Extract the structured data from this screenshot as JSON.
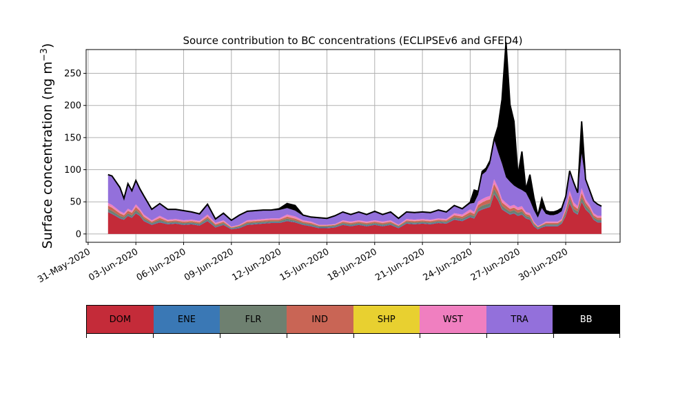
{
  "chart_data": {
    "type": "area",
    "stacked": true,
    "title": "Source contribution to BC concentrations (ECLIPSEv6 and GFED4)",
    "ylabel": "Surface concentration (ng m",
    "ylabel_unit_sup": "−3",
    "ylabel_close": ")",
    "xlabel": "",
    "ylim": [
      -13,
      287
    ],
    "yticks": [
      0,
      50,
      100,
      150,
      200,
      250
    ],
    "xlim": [
      "2020-05-30T21:00",
      "2020-07-03T10:00"
    ],
    "xtick_labels": [
      "31-May-2020",
      "03-Jun-2020",
      "06-Jun-2020",
      "09-Jun-2020",
      "12-Jun-2020",
      "15-Jun-2020",
      "18-Jun-2020",
      "21-Jun-2020",
      "24-Jun-2020",
      "27-Jun-2020",
      "30-Jun-2020"
    ],
    "xtick_dates": [
      "2020-05-31",
      "2020-06-03",
      "2020-06-06",
      "2020-06-09",
      "2020-06-12",
      "2020-06-15",
      "2020-06-18",
      "2020-06-21",
      "2020-06-24",
      "2020-06-27",
      "2020-06-30"
    ],
    "grid": true,
    "x": [
      "2020-06-01T06:00",
      "2020-06-01T12:00",
      "2020-06-02T00:00",
      "2020-06-02T06:00",
      "2020-06-02T12:00",
      "2020-06-02T18:00",
      "2020-06-03T00:00",
      "2020-06-03T06:00",
      "2020-06-03T12:00",
      "2020-06-04T00:00",
      "2020-06-04T12:00",
      "2020-06-05T00:00",
      "2020-06-05T12:00",
      "2020-06-06T00:00",
      "2020-06-06T12:00",
      "2020-06-07T00:00",
      "2020-06-07T12:00",
      "2020-06-08T00:00",
      "2020-06-08T12:00",
      "2020-06-09T00:00",
      "2020-06-09T12:00",
      "2020-06-10T00:00",
      "2020-06-10T12:00",
      "2020-06-11T00:00",
      "2020-06-11T12:00",
      "2020-06-12T00:00",
      "2020-06-12T12:00",
      "2020-06-13T00:00",
      "2020-06-13T12:00",
      "2020-06-14T00:00",
      "2020-06-14T12:00",
      "2020-06-15T00:00",
      "2020-06-15T12:00",
      "2020-06-16T00:00",
      "2020-06-16T12:00",
      "2020-06-17T00:00",
      "2020-06-17T12:00",
      "2020-06-18T00:00",
      "2020-06-18T12:00",
      "2020-06-19T00:00",
      "2020-06-19T12:00",
      "2020-06-20T00:00",
      "2020-06-20T12:00",
      "2020-06-21T00:00",
      "2020-06-21T12:00",
      "2020-06-22T00:00",
      "2020-06-22T12:00",
      "2020-06-23T00:00",
      "2020-06-23T12:00",
      "2020-06-24T00:00",
      "2020-06-24T06:00",
      "2020-06-24T12:00",
      "2020-06-24T18:00",
      "2020-06-25T00:00",
      "2020-06-25T06:00",
      "2020-06-25T12:00",
      "2020-06-25T18:00",
      "2020-06-26T00:00",
      "2020-06-26T06:00",
      "2020-06-26T12:00",
      "2020-06-26T18:00",
      "2020-06-27T00:00",
      "2020-06-27T06:00",
      "2020-06-27T12:00",
      "2020-06-27T18:00",
      "2020-06-28T00:00",
      "2020-06-28T06:00",
      "2020-06-28T12:00",
      "2020-06-28T18:00",
      "2020-06-29T00:00",
      "2020-06-29T06:00",
      "2020-06-29T12:00",
      "2020-06-29T18:00",
      "2020-06-30T00:00",
      "2020-06-30T06:00",
      "2020-06-30T12:00",
      "2020-06-30T18:00",
      "2020-07-01T00:00",
      "2020-07-01T06:00",
      "2020-07-01T12:00",
      "2020-07-01T18:00",
      "2020-07-02T00:00",
      "2020-07-02T06:00"
    ],
    "series": [
      {
        "name": "DOM",
        "color": "#c42b39",
        "values": [
          34,
          31,
          24,
          22,
          28,
          25,
          32,
          28,
          20,
          14,
          18,
          15,
          16,
          14,
          15,
          13,
          20,
          10,
          14,
          7,
          9,
          14,
          15,
          16,
          17,
          17,
          20,
          18,
          14,
          12,
          9,
          9,
          10,
          14,
          12,
          14,
          12,
          14,
          12,
          14,
          9,
          16,
          15,
          16,
          15,
          17,
          16,
          22,
          20,
          26,
          24,
          35,
          38,
          40,
          42,
          62,
          52,
          38,
          34,
          30,
          32,
          28,
          30,
          24,
          22,
          12,
          7,
          10,
          12,
          12,
          12,
          12,
          16,
          28,
          48,
          34,
          30,
          50,
          38,
          32,
          22,
          18,
          18
        ]
      },
      {
        "name": "ENE",
        "color": "#3a78b5",
        "values": [
          1,
          1,
          1,
          1,
          1,
          1,
          1,
          1,
          1,
          1,
          1,
          1,
          1,
          1,
          1,
          1,
          1,
          1,
          1,
          1,
          1,
          1,
          1,
          1,
          1,
          1,
          1,
          1,
          1,
          1,
          1,
          1,
          1,
          1,
          1,
          1,
          1,
          1,
          1,
          1,
          1,
          1,
          1,
          1,
          1,
          1,
          1,
          1,
          1,
          1,
          1,
          1,
          1,
          1,
          1,
          1,
          1,
          1,
          1,
          1,
          1,
          1,
          1,
          1,
          1,
          1,
          1,
          1,
          1,
          1,
          1,
          1,
          1,
          1,
          1,
          1,
          1,
          1,
          1,
          1,
          1,
          1,
          1
        ]
      },
      {
        "name": "FLR",
        "color": "#6e8070",
        "values": [
          4,
          4,
          3,
          3,
          3,
          3,
          4,
          3,
          3,
          2,
          3,
          2,
          2,
          2,
          2,
          2,
          3,
          2,
          2,
          1,
          2,
          2,
          2,
          2,
          2,
          2,
          3,
          2,
          2,
          2,
          2,
          2,
          2,
          2,
          2,
          2,
          2,
          2,
          2,
          2,
          2,
          2,
          2,
          2,
          2,
          2,
          2,
          3,
          3,
          3,
          3,
          4,
          5,
          5,
          5,
          7,
          6,
          5,
          4,
          4,
          4,
          4,
          4,
          3,
          3,
          2,
          2,
          2,
          2,
          2,
          2,
          2,
          2,
          4,
          6,
          4,
          4,
          6,
          5,
          4,
          3,
          3,
          3
        ]
      },
      {
        "name": "IND",
        "color": "#c96555",
        "values": [
          5,
          5,
          4,
          3,
          4,
          4,
          5,
          4,
          3,
          2,
          3,
          2,
          2,
          2,
          2,
          2,
          3,
          2,
          2,
          1,
          1,
          2,
          2,
          2,
          2,
          2,
          3,
          3,
          2,
          2,
          1,
          1,
          1,
          2,
          2,
          2,
          2,
          2,
          2,
          2,
          1,
          2,
          2,
          2,
          2,
          2,
          2,
          3,
          3,
          4,
          3,
          5,
          5,
          6,
          6,
          8,
          7,
          5,
          5,
          4,
          4,
          4,
          4,
          3,
          3,
          2,
          1,
          1,
          2,
          2,
          2,
          2,
          2,
          4,
          6,
          5,
          4,
          7,
          5,
          4,
          3,
          3,
          3
        ]
      },
      {
        "name": "SHP",
        "color": "#e8d030",
        "values": [
          0.3,
          0.3,
          0.3,
          0.3,
          0.3,
          0.3,
          0.3,
          0.3,
          0.3,
          0.3,
          0.3,
          0.3,
          0.3,
          0.3,
          0.3,
          0.3,
          0.3,
          0.3,
          0.3,
          0.3,
          0.3,
          0.3,
          0.3,
          0.3,
          0.3,
          0.3,
          0.3,
          0.3,
          0.3,
          0.3,
          0.3,
          0.3,
          0.3,
          0.3,
          0.3,
          0.3,
          0.3,
          0.3,
          0.3,
          0.3,
          0.3,
          0.3,
          0.3,
          0.3,
          0.3,
          0.3,
          0.3,
          0.3,
          0.3,
          0.3,
          0.3,
          0.3,
          0.3,
          0.3,
          0.3,
          0.3,
          0.3,
          0.3,
          0.3,
          0.3,
          0.3,
          0.3,
          0.3,
          0.3,
          0.3,
          0.3,
          0.3,
          0.3,
          0.3,
          0.3,
          0.3,
          0.3,
          0.3,
          0.3,
          0.3,
          0.3,
          0.3,
          0.3,
          0.3,
          0.3,
          0.3,
          0.3,
          0.3
        ]
      },
      {
        "name": "WST",
        "color": "#f07fc0",
        "values": [
          4,
          4,
          3,
          3,
          3,
          3,
          4,
          3,
          3,
          2,
          3,
          2,
          2,
          2,
          2,
          2,
          3,
          2,
          2,
          1,
          1,
          2,
          2,
          2,
          2,
          2,
          3,
          3,
          2,
          2,
          1,
          1,
          1,
          2,
          2,
          2,
          2,
          2,
          2,
          2,
          1,
          2,
          2,
          2,
          2,
          2,
          2,
          3,
          3,
          4,
          3,
          5,
          5,
          5,
          5,
          7,
          6,
          5,
          4,
          4,
          4,
          4,
          4,
          3,
          3,
          2,
          1,
          1,
          2,
          2,
          2,
          2,
          2,
          4,
          6,
          5,
          4,
          7,
          5,
          4,
          3,
          3,
          3
        ]
      },
      {
        "name": "TRA",
        "color": "#9370db",
        "values": [
          43,
          44,
          36,
          22,
          38,
          30,
          36,
          30,
          28,
          16,
          18,
          15,
          14,
          14,
          11,
          10,
          15,
          5,
          10,
          9,
          14,
          13,
          13,
          13,
          12,
          13,
          10,
          9,
          7,
          6,
          10,
          9,
          12,
          12,
          10,
          12,
          10,
          13,
          10,
          12,
          9,
          10,
          10,
          10,
          10,
          12,
          10,
          11,
          8,
          9,
          14,
          11,
          38,
          40,
          50,
          62,
          55,
          55,
          40,
          38,
          30,
          30,
          25,
          30,
          20,
          18,
          13,
          25,
          12,
          10,
          10,
          12,
          12,
          16,
          30,
          30,
          20,
          54,
          30,
          22,
          18,
          17,
          14
        ]
      },
      {
        "name": "BB",
        "color": "#000000",
        "values": [
          1,
          1,
          1,
          1,
          1,
          1,
          1,
          1,
          1,
          1,
          1,
          1,
          1,
          1,
          1,
          1,
          1,
          1,
          1,
          1,
          1,
          1,
          1,
          1,
          1,
          2,
          7,
          8,
          1,
          1,
          1,
          1,
          1,
          1,
          1,
          1,
          1,
          1,
          1,
          1,
          1,
          1,
          1,
          1,
          1,
          1,
          1,
          1,
          1,
          2,
          20,
          5,
          5,
          5,
          5,
          0,
          40,
          100,
          210,
          120,
          100,
          20,
          60,
          5,
          40,
          20,
          3,
          15,
          5,
          5,
          5,
          5,
          5,
          1,
          1,
          1,
          1,
          50,
          1,
          1,
          1,
          1,
          1
        ]
      }
    ],
    "legend": {
      "placement": "bottom",
      "entries": [
        {
          "label": "DOM",
          "color": "#c42b39",
          "text_color": "#000000"
        },
        {
          "label": "ENE",
          "color": "#3a78b5",
          "text_color": "#000000"
        },
        {
          "label": "FLR",
          "color": "#6e8070",
          "text_color": "#000000"
        },
        {
          "label": "IND",
          "color": "#c96555",
          "text_color": "#000000"
        },
        {
          "label": "SHP",
          "color": "#e8d030",
          "text_color": "#000000"
        },
        {
          "label": "WST",
          "color": "#f07fc0",
          "text_color": "#000000"
        },
        {
          "label": "TRA",
          "color": "#9370db",
          "text_color": "#000000"
        },
        {
          "label": "BB",
          "color": "#000000",
          "text_color": "#ffffff"
        }
      ]
    }
  }
}
